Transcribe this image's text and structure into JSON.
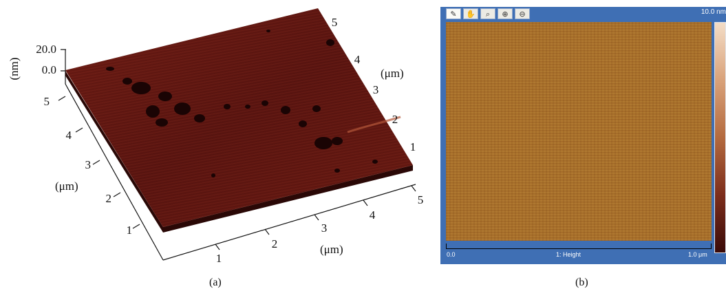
{
  "panel_a": {
    "caption": "(a)",
    "z_axis": {
      "label": "(nm)",
      "ticks": [
        "20.0",
        "0.0"
      ]
    },
    "left_axis": {
      "label": "(μm)",
      "ticks": [
        "5",
        "4",
        "3",
        "2",
        "1"
      ]
    },
    "bottom_axis": {
      "label": "(μm)",
      "ticks": [
        "1",
        "2",
        "3",
        "4",
        "5"
      ]
    },
    "right_axis": {
      "label": "(μm)",
      "ticks": [
        "5",
        "4",
        "3",
        "2",
        "1"
      ]
    },
    "colors": {
      "surface": "#5a1410",
      "surface_light": "#7a2418",
      "pits": "#1a0404"
    }
  },
  "panel_b": {
    "caption": "(b)",
    "toolbar": {
      "tools": [
        {
          "name": "ruler-icon",
          "glyph": "✎",
          "active": true
        },
        {
          "name": "pan-hand-icon",
          "glyph": "✋",
          "active": false
        },
        {
          "name": "zoom-magnifier-icon",
          "glyph": "⌕",
          "active": false
        },
        {
          "name": "zoom-in-icon",
          "glyph": "⊕",
          "active": false
        },
        {
          "name": "zoom-out-icon",
          "glyph": "⊖",
          "active": false
        }
      ]
    },
    "color_scale_max": "10.0 nm",
    "scale_left": "0.0",
    "channel_label": "1: Height",
    "scale_right": "1.0 μm",
    "colors": {
      "window": "#3f6fb4",
      "image": "#a9712d"
    }
  }
}
